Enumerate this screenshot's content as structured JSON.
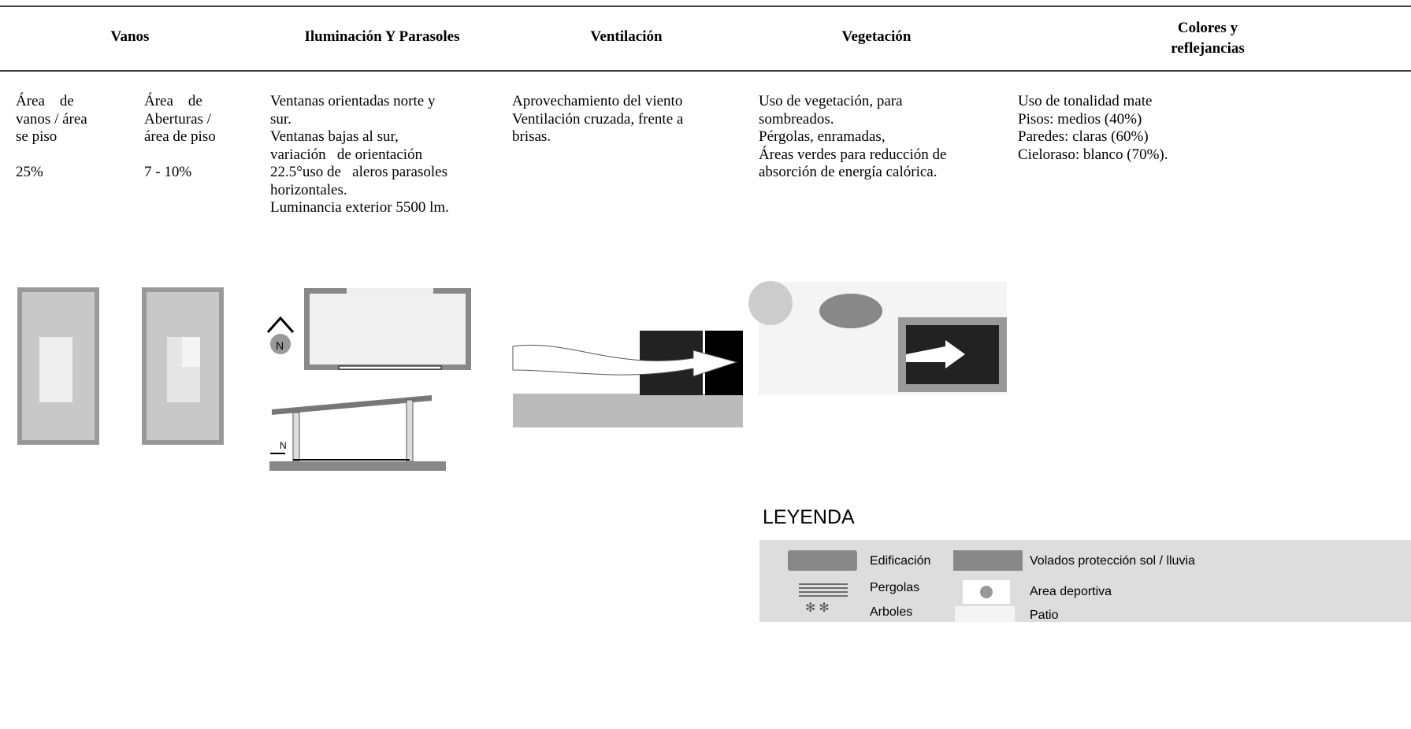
{
  "table": {
    "headers": [
      "Vanos",
      "Iluminación Y Parasoles",
      "Ventilación",
      "Vegetación",
      [
        "Colores y",
        "reflejancias"
      ]
    ],
    "cells": [
      [
        "Área    de",
        "vanos / área",
        "se piso",
        "",
        "25%"
      ],
      [
        "Área    de",
        "Aberturas /",
        "área de piso",
        "",
        "7 - 10%"
      ],
      [
        "Ventanas orientadas norte y",
        "sur.",
        "Ventanas bajas al sur,",
        "variación   de orientación",
        "22.5°uso de   aleros parasoles",
        "horizontales.",
        "Luminancia exterior 5500 lm."
      ],
      [
        "Aprovechamiento del viento",
        "Ventilación cruzada, frente a",
        "brisas."
      ],
      [
        "Uso de vegetación, para",
        "sombreados.",
        "Pérgolas, enramadas,",
        "Áreas verdes para reducción de",
        "absorción de energía calórica."
      ],
      [
        "Uso de tonalidad mate",
        "Pisos: medios (40%)",
        "Paredes: claras (60%)",
        "Cieloraso: blanco (70%)."
      ]
    ]
  },
  "figures": {
    "north_plan": "N",
    "north_section": "N"
  },
  "legend": {
    "title": "LEYENDA",
    "items": [
      "Edificación",
      "Volados protección sol / lluvia",
      "Pergolas",
      "Area deportiva",
      "Arboles",
      "Patio"
    ]
  }
}
